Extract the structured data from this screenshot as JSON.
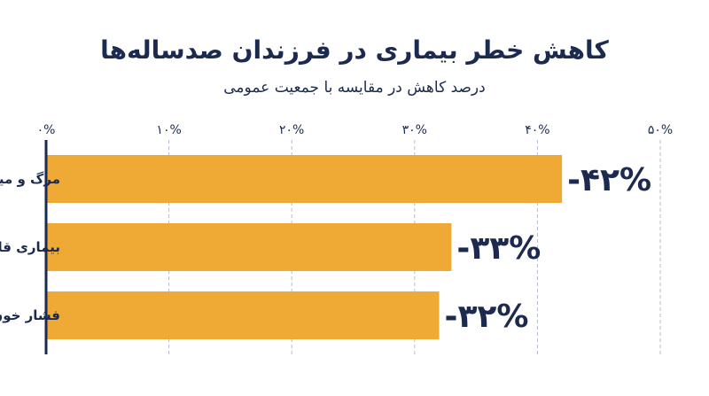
{
  "title": "کاهش خطر بیماری در فرزندان صدساله‌ها",
  "subtitle": "درصد کاهش در مقایسه با جمعیت عمومی",
  "chart_data": {
    "type": "bar",
    "orientation": "horizontal",
    "title": "کاهش خطر بیماری در فرزندان صدساله‌ها",
    "subtitle": "درصد کاهش در مقایسه با جمعیت عمومی",
    "categories": [
      "مرگ و میر ناشی از همه علل",
      "بیماری قلبی عروقی",
      "فشار خون بالا"
    ],
    "values": [
      42,
      33,
      32
    ],
    "value_labels": [
      "-۴۲%",
      "-۳۳%",
      "-۳۲%"
    ],
    "xlim": [
      0,
      50
    ],
    "ticks": [
      0,
      10,
      20,
      30,
      40,
      50
    ],
    "tick_labels": [
      "۰%",
      "۱۰%",
      "۲۰%",
      "۳۰%",
      "۴۰%",
      "۵۰%"
    ],
    "grid": true,
    "colors": {
      "bar": "#efa935",
      "text": "#1b2a4e",
      "axis": "#1b2a4e",
      "grid": "#b5bccb"
    }
  }
}
